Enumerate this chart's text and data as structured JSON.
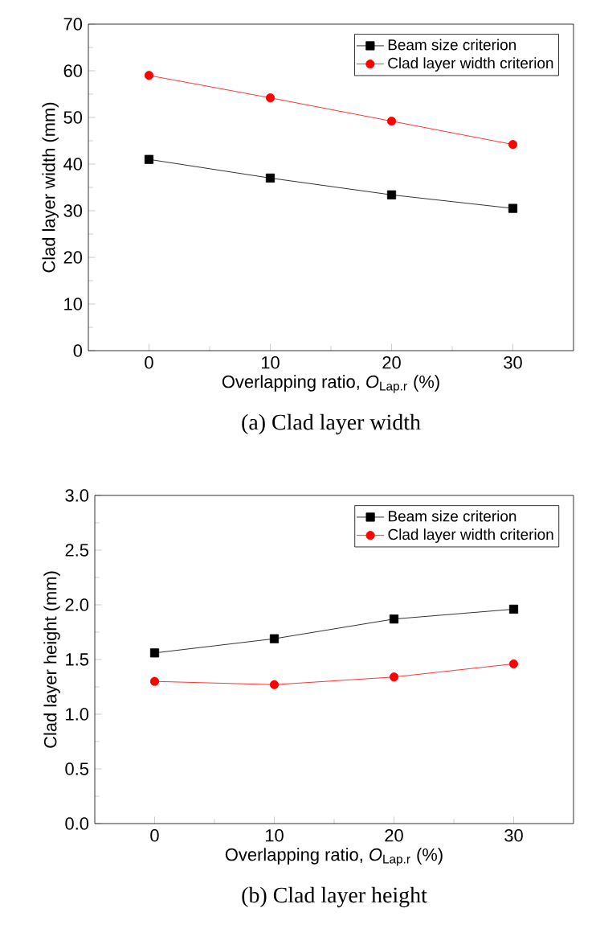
{
  "chart_data": [
    {
      "type": "line",
      "title": "(a)  Clad layer width",
      "xlabel": "Overlapping ratio, *O*$_{Lap.r}$ (%)",
      "ylabel": "Clad layer width (mm)",
      "x": [
        0,
        10,
        20,
        30
      ],
      "xlim": [
        -5,
        35
      ],
      "xticks": [
        0,
        10,
        20,
        30
      ],
      "ylim": [
        0,
        70
      ],
      "yticks": [
        0,
        10,
        20,
        30,
        40,
        50,
        60,
        70
      ],
      "legend": "top right",
      "series": [
        {
          "name": "Beam size criterion",
          "color": "#000000",
          "marker": "square",
          "values": [
            41,
            37,
            33.4,
            30.5
          ]
        },
        {
          "name": "Clad layer width criterion",
          "color": "#ff0000",
          "marker": "circle",
          "values": [
            59,
            54.2,
            49.2,
            44.2
          ]
        }
      ]
    },
    {
      "type": "line",
      "title": "(b)  Clad layer height",
      "xlabel": "Overlapping ratio, *O*$_{Lap.r}$ (%)",
      "ylabel": "Clad layer height (mm)",
      "x": [
        0,
        10,
        20,
        30
      ],
      "xlim": [
        -5,
        35
      ],
      "xticks": [
        0,
        10,
        20,
        30
      ],
      "ylim": [
        0,
        3
      ],
      "yticks": [
        {
          "value": 0,
          "label": "0.0"
        },
        {
          "value": 0.5,
          "label": "0.5"
        },
        {
          "value": 1,
          "label": "1.0"
        },
        {
          "value": 1.5,
          "label": "1.5"
        },
        {
          "value": 2,
          "label": "2.0"
        },
        {
          "value": 2.5,
          "label": "2.5"
        },
        {
          "value": 3,
          "label": "3.0"
        }
      ],
      "legend": "top right",
      "series": [
        {
          "name": "Beam size criterion",
          "color": "#000000",
          "marker": "square",
          "values": [
            1.56,
            1.69,
            1.87,
            1.96
          ]
        },
        {
          "name": "Clad layer width criterion",
          "color": "#ff0000",
          "marker": "circle",
          "values": [
            1.3,
            1.27,
            1.34,
            1.46
          ]
        }
      ]
    }
  ]
}
